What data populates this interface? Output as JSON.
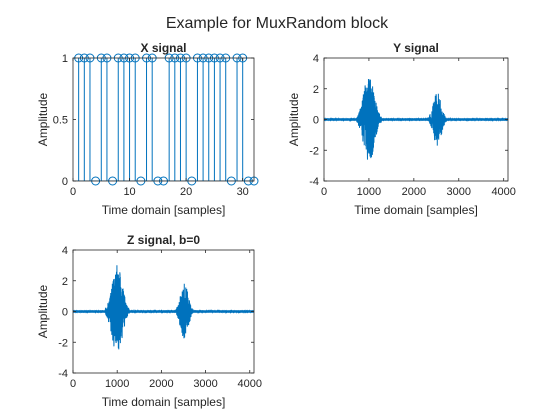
{
  "figure": {
    "suptitle": "Example for MuxRandom block",
    "line_color": "#0072BD",
    "axis_color": "#262626"
  },
  "chart_data": [
    {
      "id": "x",
      "type": "stem",
      "title": "X signal",
      "xlabel": "Time domain [samples]",
      "ylabel": "Amplitude",
      "xlim": [
        0,
        32
      ],
      "ylim": [
        0,
        1
      ],
      "xticks": [
        0,
        10,
        20,
        30
      ],
      "yticks": [
        0,
        0.5,
        1
      ],
      "xticklabels": [
        "0",
        "10",
        "20",
        "30"
      ],
      "yticklabels": [
        "0",
        "0.5",
        "1"
      ],
      "grid": false,
      "legend": "none",
      "x": [
        1,
        2,
        3,
        4,
        5,
        6,
        7,
        8,
        9,
        10,
        11,
        12,
        13,
        14,
        15,
        16,
        17,
        18,
        19,
        20,
        21,
        22,
        23,
        24,
        25,
        26,
        27,
        28,
        29,
        30,
        31,
        32
      ],
      "y": [
        1,
        1,
        1,
        0,
        1,
        1,
        0,
        1,
        1,
        1,
        1,
        0,
        1,
        1,
        0,
        0,
        1,
        1,
        1,
        1,
        0,
        1,
        1,
        1,
        1,
        1,
        1,
        0,
        1,
        1,
        0,
        0
      ]
    },
    {
      "id": "y",
      "type": "line",
      "title": "Y signal",
      "xlabel": "Time domain [samples]",
      "ylabel": "Amplitude",
      "xlim": [
        0,
        4096
      ],
      "ylim": [
        -4,
        4
      ],
      "xticks": [
        0,
        1000,
        2000,
        3000,
        4000
      ],
      "yticks": [
        -4,
        -2,
        0,
        2,
        4
      ],
      "xticklabels": [
        "0",
        "1000",
        "2000",
        "3000",
        "4000"
      ],
      "yticklabels": [
        "-4",
        "-2",
        "0",
        "2",
        "4"
      ],
      "grid": false,
      "legend": "none",
      "bursts": [
        {
          "center": 1000,
          "half_width": 240,
          "peak": 3.0,
          "trough": -2.9
        },
        {
          "center": 2520,
          "half_width": 180,
          "peak": 1.8,
          "trough": -1.8
        }
      ]
    },
    {
      "id": "z",
      "type": "line",
      "title": "Z signal, b=0",
      "xlabel": "Time domain [samples]",
      "ylabel": "Amplitude",
      "xlim": [
        0,
        4096
      ],
      "ylim": [
        -4,
        4
      ],
      "xticks": [
        0,
        1000,
        2000,
        3000,
        4000
      ],
      "yticks": [
        -4,
        -2,
        0,
        2,
        4
      ],
      "xticklabels": [
        "0",
        "1000",
        "2000",
        "3000",
        "4000"
      ],
      "yticklabels": [
        "-4",
        "-2",
        "0",
        "2",
        "4"
      ],
      "grid": false,
      "legend": "none",
      "bursts": [
        {
          "center": 1000,
          "half_width": 240,
          "peak": 3.0,
          "trough": -2.9
        },
        {
          "center": 2520,
          "half_width": 180,
          "peak": 1.8,
          "trough": -1.8
        }
      ]
    }
  ]
}
